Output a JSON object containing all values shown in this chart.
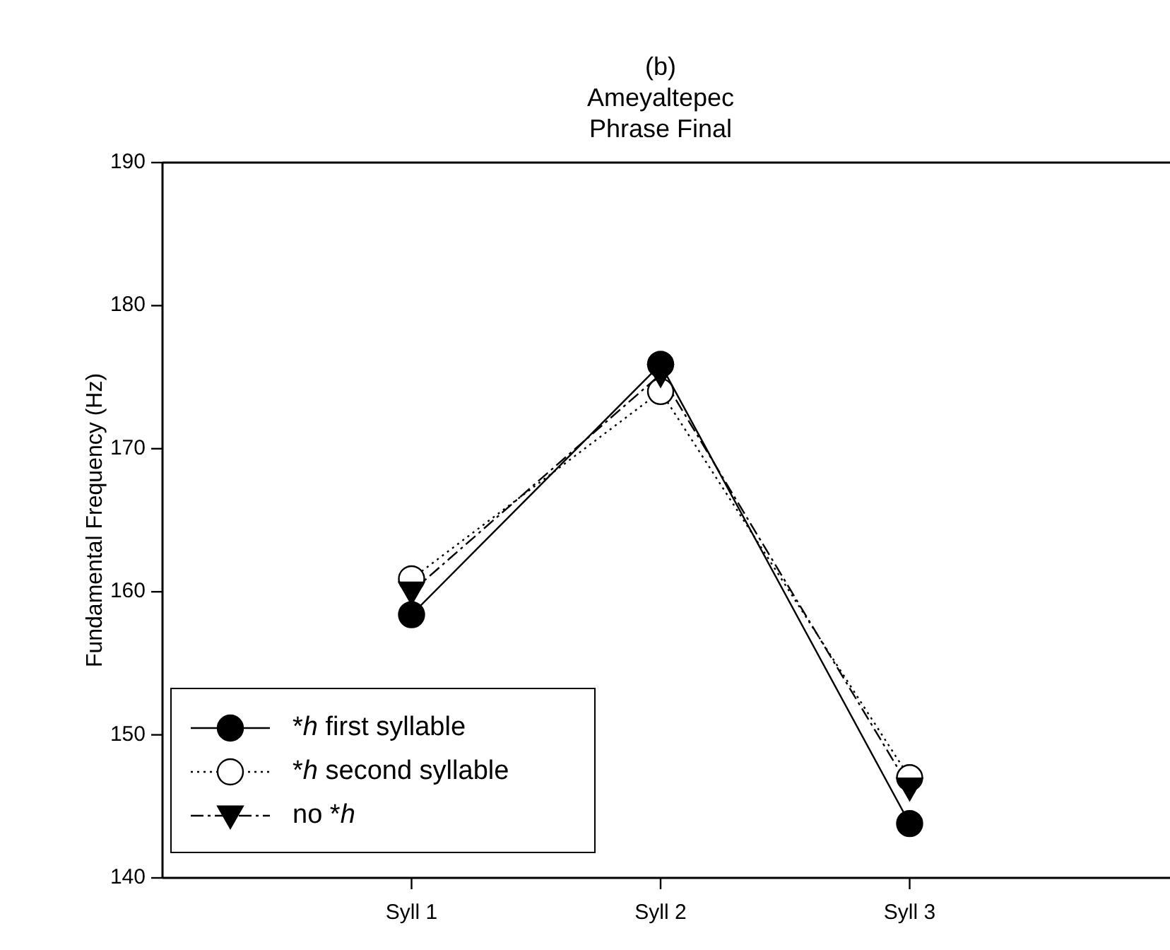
{
  "chart_data": {
    "type": "line",
    "title": "(b)",
    "subtitle": "Ameyaltepec\nPhrase Final",
    "ylabel": "Fundamental Frequency (Hz)",
    "categories": [
      "Syll 1",
      "Syll 2",
      "Syll 3"
    ],
    "series": [
      {
        "name": "*h first syllable",
        "color": "#000000",
        "values": [
          158.4,
          175.9,
          143.8
        ],
        "marker": "circle",
        "line_style": "solid"
      },
      {
        "name": "*h second syllable",
        "color": "#000000",
        "values": [
          160.9,
          174.0,
          147.0
        ],
        "marker": "circle",
        "line_style": "dotted"
      },
      {
        "name": "no *h",
        "color": "#000000",
        "values": [
          160.0,
          175.2,
          146.3
        ],
        "marker": "triangle",
        "line_style": "dashdot"
      }
    ],
    "ylim": [
      140,
      190
    ],
    "yticks": [
      140,
      150,
      160,
      170,
      180,
      190
    ],
    "grid": false,
    "legend": "bottom left"
  }
}
